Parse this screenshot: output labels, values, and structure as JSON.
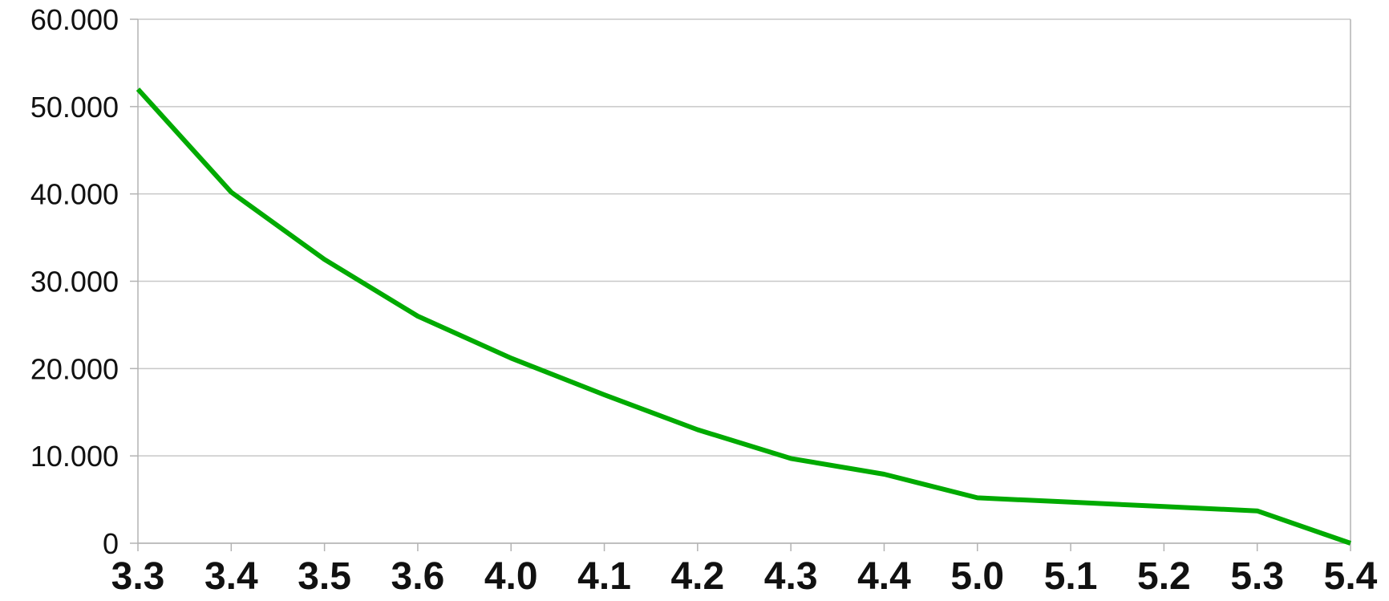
{
  "chart_data": {
    "type": "line",
    "title": "",
    "xlabel": "",
    "ylabel": "",
    "categories": [
      "3.3",
      "3.4",
      "3.5",
      "3.6",
      "4.0",
      "4.1",
      "4.2",
      "4.3",
      "4.4",
      "5.0",
      "5.1",
      "5.2",
      "5.3",
      "5.4"
    ],
    "series": [
      {
        "color": "#00aa00",
        "values": [
          52000,
          40200,
          32500,
          26000,
          21200,
          17000,
          13000,
          9700,
          7900,
          5200,
          4700,
          4200,
          3700,
          0
        ]
      }
    ],
    "ylim": [
      0,
      60000
    ],
    "y_ticks": [
      0,
      10000,
      20000,
      30000,
      40000,
      50000,
      60000
    ],
    "y_tick_labels": [
      "0",
      "10.000",
      "20.000",
      "30.000",
      "40.000",
      "50.000",
      "60.000"
    ],
    "grid": "horizontal",
    "legend": "none"
  }
}
